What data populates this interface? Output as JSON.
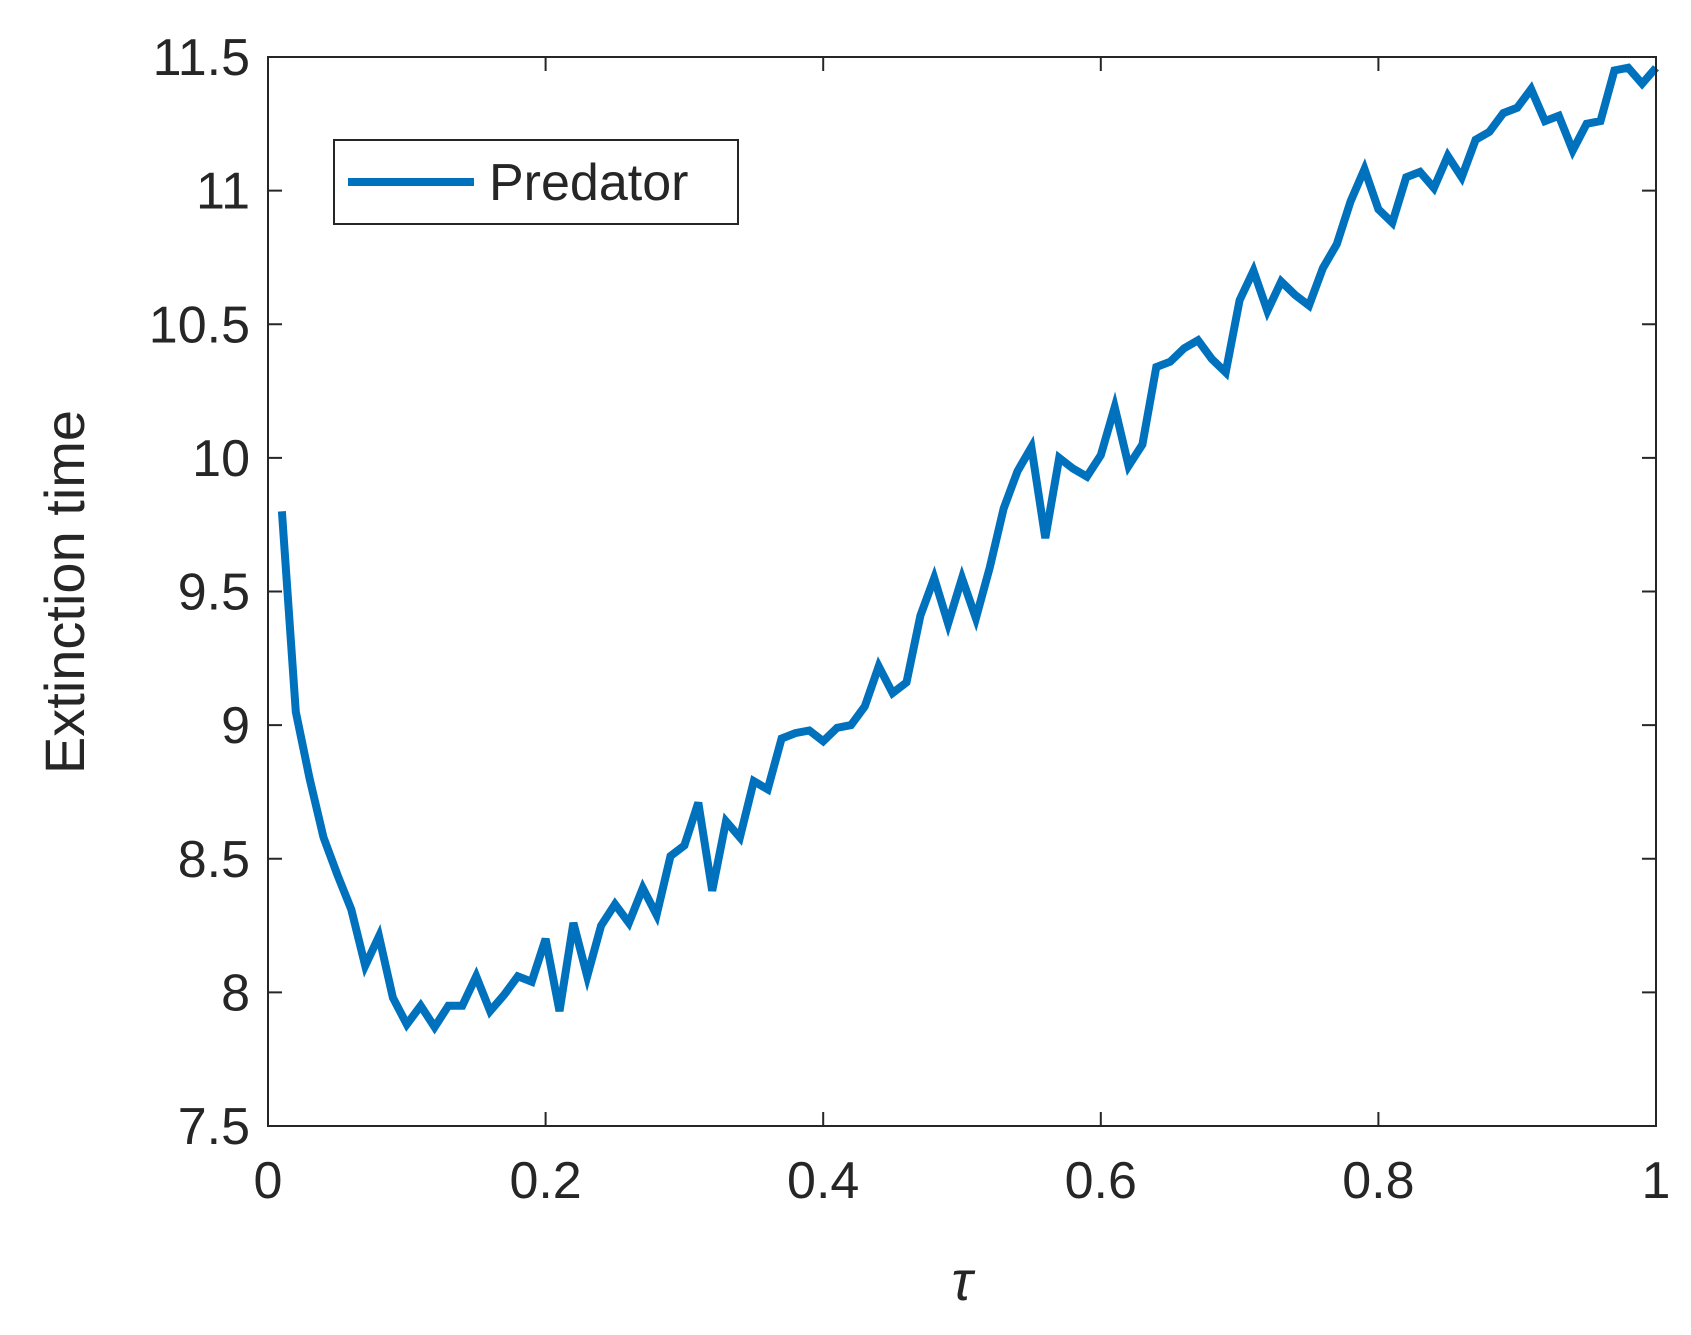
{
  "chart_data": {
    "type": "line",
    "title": "",
    "xlabel": "τ",
    "ylabel": "Extinction time",
    "xlim": [
      0,
      1
    ],
    "ylim": [
      7.5,
      11.5
    ],
    "xticks": [
      0,
      0.2,
      0.4,
      0.6,
      0.8,
      1
    ],
    "xtick_labels": [
      "0",
      "0.2",
      "0.4",
      "0.6",
      "0.8",
      "1"
    ],
    "yticks": [
      7.5,
      8,
      8.5,
      9,
      9.5,
      10,
      10.5,
      11,
      11.5
    ],
    "ytick_labels": [
      "7.5",
      "8",
      "8.5",
      "9",
      "9.5",
      "10",
      "10.5",
      "11",
      "11.5"
    ],
    "grid": false,
    "box": true,
    "legend_position": "top-left",
    "series": [
      {
        "name": "Predator",
        "color": "#0072BD",
        "x": [
          0.01,
          0.02,
          0.03,
          0.04,
          0.05,
          0.06,
          0.07,
          0.08,
          0.09,
          0.1,
          0.11,
          0.12,
          0.13,
          0.14,
          0.15,
          0.16,
          0.17,
          0.18,
          0.19,
          0.2,
          0.21,
          0.22,
          0.23,
          0.24,
          0.25,
          0.26,
          0.27,
          0.28,
          0.29,
          0.3,
          0.31,
          0.32,
          0.33,
          0.34,
          0.35,
          0.36,
          0.37,
          0.38,
          0.39,
          0.4,
          0.41,
          0.42,
          0.43,
          0.44,
          0.45,
          0.46,
          0.47,
          0.48,
          0.49,
          0.5,
          0.51,
          0.52,
          0.53,
          0.54,
          0.55,
          0.56,
          0.57,
          0.58,
          0.59,
          0.6,
          0.61,
          0.62,
          0.63,
          0.64,
          0.65,
          0.66,
          0.67,
          0.68,
          0.69,
          0.7,
          0.71,
          0.72,
          0.73,
          0.74,
          0.75,
          0.76,
          0.77,
          0.78,
          0.79,
          0.8,
          0.81,
          0.82,
          0.83,
          0.84,
          0.85,
          0.86,
          0.87,
          0.88,
          0.89,
          0.9,
          0.91,
          0.92,
          0.93,
          0.94,
          0.95,
          0.96,
          0.97,
          0.98,
          0.99,
          1.0
        ],
        "y": [
          9.8,
          9.05,
          8.8,
          8.58,
          8.44,
          8.31,
          8.1,
          8.21,
          7.98,
          7.88,
          7.95,
          7.87,
          7.95,
          7.95,
          8.06,
          7.93,
          7.99,
          8.06,
          8.04,
          8.2,
          7.93,
          8.26,
          8.06,
          8.25,
          8.33,
          8.26,
          8.39,
          8.29,
          8.51,
          8.55,
          8.71,
          8.38,
          8.64,
          8.58,
          8.79,
          8.76,
          8.95,
          8.97,
          8.98,
          8.94,
          8.99,
          9.0,
          9.07,
          9.22,
          9.12,
          9.16,
          9.41,
          9.55,
          9.38,
          9.55,
          9.4,
          9.59,
          9.81,
          9.95,
          10.04,
          9.7,
          10.0,
          9.96,
          9.93,
          10.01,
          10.19,
          9.97,
          10.05,
          10.34,
          10.36,
          10.41,
          10.44,
          10.37,
          10.32,
          10.59,
          10.7,
          10.55,
          10.66,
          10.61,
          10.57,
          10.71,
          10.8,
          10.96,
          11.08,
          10.93,
          10.88,
          11.05,
          11.07,
          11.01,
          11.13,
          11.05,
          11.19,
          11.22,
          11.29,
          11.31,
          11.38,
          11.26,
          11.28,
          11.15,
          11.25,
          11.26,
          11.45,
          11.46,
          11.4,
          11.46
        ]
      }
    ]
  }
}
